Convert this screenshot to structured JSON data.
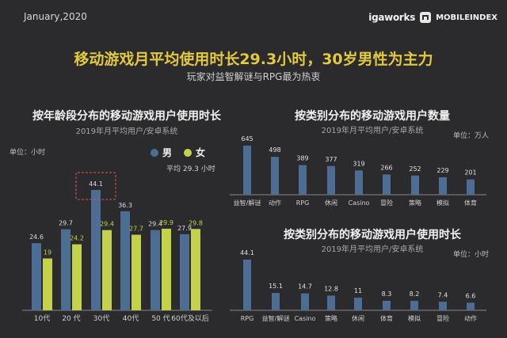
{
  "header": {
    "date": "January,2020",
    "brand_igaworks": "igaworks",
    "brand_mobileindex": "MOBILEINDEX"
  },
  "title": "移动游戏月平均使用时长29.3小时，30岁男性为主力",
  "subtitle": "玩家对益智解谜与RPG最为热衷",
  "colors": {
    "male": "#4e6d92",
    "female": "#c3d249",
    "bar": "#4e6d92",
    "highlight": "#e05555",
    "accent": "#e2c93f"
  },
  "chart_data": [
    {
      "type": "bar",
      "title": "按年龄段分布的移动游戏用户使用时长",
      "subtitle": "2019年月平均用户/安卓系统",
      "unit": "单位：小时",
      "average_label": "平均 29.3 小时",
      "highlight_category": "30代",
      "categories": [
        "10代",
        "20 代",
        "30代",
        "40代",
        "50 代",
        "60代及以后"
      ],
      "series": [
        {
          "name": "男",
          "values": [
            24.6,
            29.7,
            44.1,
            36.3,
            29.4,
            27.9
          ]
        },
        {
          "name": "女",
          "values": [
            19.0,
            24.2,
            29.4,
            27.7,
            29.9,
            29.8
          ]
        }
      ],
      "ylim": [
        0,
        50
      ]
    },
    {
      "type": "bar",
      "title": "按类别分布的移动游戏用户数量",
      "subtitle": "2019年月平均用户/安卓系统",
      "unit": "单位：万人",
      "categories": [
        "益智/解谜",
        "动作",
        "RPG",
        "休闲",
        "Casino",
        "冒险",
        "策略",
        "模拟",
        "体育"
      ],
      "values": [
        645,
        498,
        389,
        377,
        319,
        266,
        252,
        229,
        201
      ],
      "ylim": [
        0,
        700
      ]
    },
    {
      "type": "bar",
      "title": "按类别分布的移动游戏用户使用时长",
      "subtitle": "2019年月平均用户/安卓系统",
      "unit": "单位：小时",
      "categories": [
        "RPG",
        "益智/解谜",
        "Casino",
        "策略",
        "休闲",
        "体育",
        "模拟",
        "冒险",
        "动作"
      ],
      "values": [
        44.1,
        15.1,
        14.7,
        12.8,
        11.0,
        8.3,
        8.2,
        7.4,
        6.6
      ],
      "ylim": [
        0,
        48
      ]
    }
  ]
}
